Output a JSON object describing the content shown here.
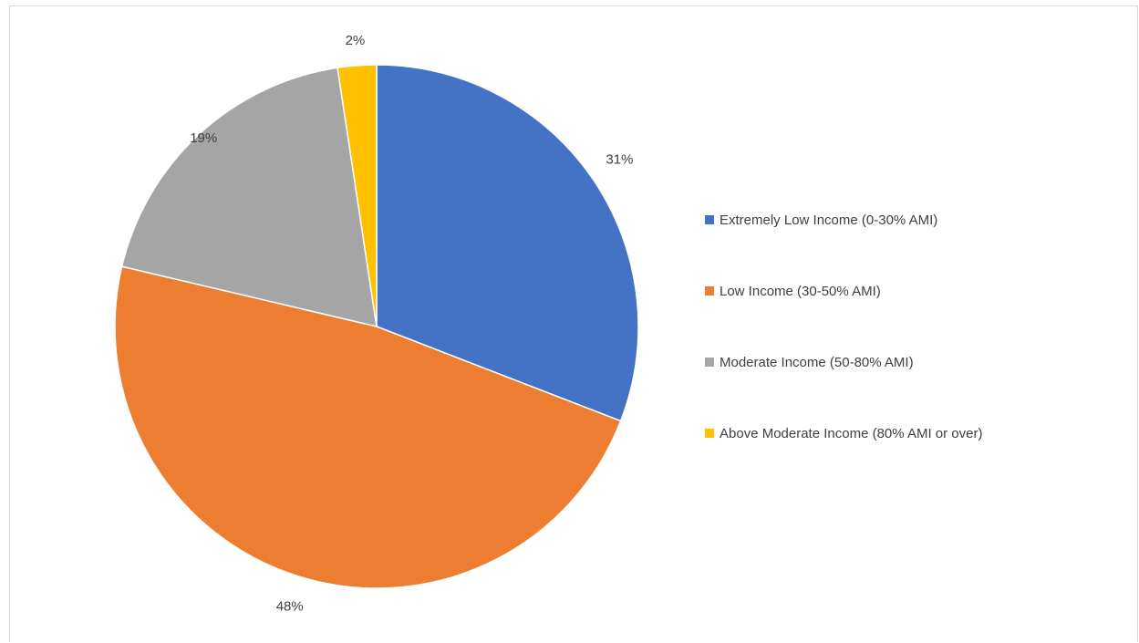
{
  "chart_data": {
    "type": "pie",
    "title": "",
    "legend_position": "right",
    "slices": [
      {
        "label": "Extremely Low Income (0-30% AMI)",
        "value": 31,
        "display": "31%",
        "color": "#4472C4"
      },
      {
        "label": "Low Income (30-50% AMI)",
        "value": 48,
        "display": "48%",
        "color": "#ED7D31"
      },
      {
        "label": "Moderate Income (50-80% AMI)",
        "value": 19,
        "display": "19%",
        "color": "#A5A5A5"
      },
      {
        "label": "Above Moderate Income (80% AMI or over)",
        "value": 2.4,
        "display": "2%",
        "color": "#FFC000"
      }
    ]
  }
}
